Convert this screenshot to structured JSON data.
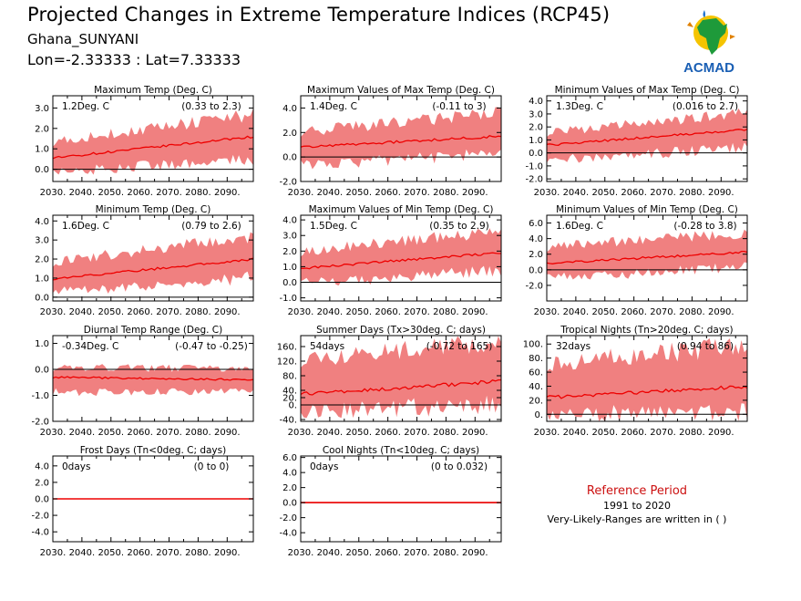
{
  "header": {
    "title": "Projected Changes in Extreme Temperature Indices (RCP45)",
    "site": "Ghana_SUNYANI",
    "location": "Lon=-2.33333 : Lat=7.33333"
  },
  "logo": {
    "text": "ACMAD",
    "icon": "africa-sun-logo-icon"
  },
  "reference": {
    "title": "Reference Period",
    "years": "1991 to 2020",
    "note": "Very-Likely-Ranges are written in ( )"
  },
  "colors": {
    "band": "#f08080",
    "line": "#ee0000",
    "zero": "#000000"
  },
  "chart_data": [
    {
      "type": "area",
      "title": "Maximum Temp (Deg. C)",
      "value_label": "1.2Deg. C",
      "range_label": "(0.33 to 2.3)",
      "xlim": [
        2030,
        2099
      ],
      "ylim": [
        -0.6,
        3.6
      ],
      "yticks": [
        0.0,
        1.0,
        2.0,
        3.0
      ],
      "ytick_labels": [
        "0.0",
        "1.0",
        "2.0",
        "3.0"
      ],
      "xticks": [
        "2030.",
        "2040.",
        "2050.",
        "2060.",
        "2070.",
        "2080.",
        "2090."
      ],
      "median": {
        "start": 0.55,
        "end": 1.6
      },
      "band": {
        "lower": [
          -0.1,
          0.6
        ],
        "upper": [
          1.3,
          2.6
        ]
      }
    },
    {
      "type": "area",
      "title": "Maximum Values of Max Temp (Deg. C)",
      "value_label": "1.4Deg. C",
      "range_label": "(-0.11 to 3)",
      "xlim": [
        2030,
        2099
      ],
      "ylim": [
        -2.0,
        5.0
      ],
      "yticks": [
        -2.0,
        0.0,
        2.0,
        4.0
      ],
      "ytick_labels": [
        "-2.0",
        "0.0",
        "2.0",
        "4.0"
      ],
      "xticks": [
        "2030.",
        "2040.",
        "2050.",
        "2060.",
        "2070.",
        "2080.",
        "2090."
      ],
      "median": {
        "start": 0.8,
        "end": 1.7
      },
      "band": {
        "lower": [
          -0.6,
          0.4
        ],
        "upper": [
          2.0,
          3.5
        ]
      }
    },
    {
      "type": "area",
      "title": "Minimum Values of Max Temp (Deg. C)",
      "value_label": "1.3Deg. C",
      "range_label": "(0.016 to 2.7)",
      "xlim": [
        2030,
        2099
      ],
      "ylim": [
        -2.2,
        4.4
      ],
      "yticks": [
        -2.0,
        -1.0,
        0.0,
        1.0,
        2.0,
        3.0,
        4.0
      ],
      "ytick_labels": [
        "-2.0",
        "-1.0",
        "0.0",
        "1.0",
        "2.0",
        "3.0",
        "4.0"
      ],
      "xticks": [
        "2030.",
        "2040.",
        "2050.",
        "2060.",
        "2070.",
        "2080.",
        "2090."
      ],
      "median": {
        "start": 0.6,
        "end": 1.8
      },
      "band": {
        "lower": [
          -0.5,
          0.5
        ],
        "upper": [
          1.5,
          3.0
        ]
      }
    },
    {
      "type": "area",
      "title": "Minimum Temp (Deg. C)",
      "value_label": "1.6Deg. C",
      "range_label": "(0.79 to 2.6)",
      "xlim": [
        2030,
        2099
      ],
      "ylim": [
        -0.2,
        4.3
      ],
      "yticks": [
        0.0,
        1.0,
        2.0,
        3.0,
        4.0
      ],
      "ytick_labels": [
        "0.0",
        "1.0",
        "2.0",
        "3.0",
        "4.0"
      ],
      "xticks": [
        "2030.",
        "2040.",
        "2050.",
        "2060.",
        "2070.",
        "2080.",
        "2090."
      ],
      "median": {
        "start": 0.95,
        "end": 2.0
      },
      "band": {
        "lower": [
          0.3,
          1.1
        ],
        "upper": [
          1.8,
          3.1
        ]
      }
    },
    {
      "type": "area",
      "title": "Maximum Values of Min Temp (Deg. C)",
      "value_label": "1.5Deg. C",
      "range_label": "(0.35 to 2.9)",
      "xlim": [
        2030,
        2099
      ],
      "ylim": [
        -1.2,
        4.3
      ],
      "yticks": [
        -1.0,
        0.0,
        1.0,
        2.0,
        3.0,
        4.0
      ],
      "ytick_labels": [
        "-1.0",
        "0.0",
        "1.0",
        "2.0",
        "3.0",
        "4.0"
      ],
      "xticks": [
        "2030.",
        "2040.",
        "2050.",
        "2060.",
        "2070.",
        "2080.",
        "2090."
      ],
      "median": {
        "start": 0.9,
        "end": 1.9
      },
      "band": {
        "lower": [
          0.0,
          0.8
        ],
        "upper": [
          1.9,
          3.2
        ]
      }
    },
    {
      "type": "area",
      "title": "Minimum Values of Min Temp (Deg. C)",
      "value_label": "1.6Deg. C",
      "range_label": "(-0.28 to 3.8)",
      "xlim": [
        2030,
        2099
      ],
      "ylim": [
        -4.0,
        7.0
      ],
      "yticks": [
        -2.0,
        0.0,
        2.0,
        4.0,
        6.0
      ],
      "ytick_labels": [
        "-2.0",
        "0.0",
        "2.0",
        "4.0",
        "6.0"
      ],
      "xticks": [
        "2030.",
        "2040.",
        "2050.",
        "2060.",
        "2070.",
        "2080.",
        "2090."
      ],
      "median": {
        "start": 0.8,
        "end": 2.3
      },
      "band": {
        "lower": [
          -1.0,
          0.5
        ],
        "upper": [
          2.8,
          4.6
        ]
      }
    },
    {
      "type": "area",
      "title": "Diurnal Temp Range (Deg. C)",
      "value_label": "-0.34Deg. C",
      "range_label": "(-0.47 to -0.25)",
      "xlim": [
        2030,
        2099
      ],
      "ylim": [
        -2.0,
        1.3
      ],
      "yticks": [
        -2.0,
        -1.0,
        0.0,
        1.0
      ],
      "ytick_labels": [
        "-2.0",
        "-1.0",
        "0.0",
        "1.0"
      ],
      "xticks": [
        "2030.",
        "2040.",
        "2050.",
        "2060.",
        "2070.",
        "2080.",
        "2090."
      ],
      "median": {
        "start": -0.3,
        "end": -0.4
      },
      "band": {
        "lower": [
          -0.85,
          -0.8
        ],
        "upper": [
          0.05,
          0.0
        ]
      }
    },
    {
      "type": "area",
      "title": "Summer Days (Tx>30deg. C; days)",
      "value_label": "54days",
      "range_label": "(-0.72 to 165)",
      "xlim": [
        2030,
        2099
      ],
      "ylim": [
        -45,
        190
      ],
      "yticks": [
        -40,
        0,
        20,
        40,
        80,
        120,
        160
      ],
      "ytick_labels": [
        "-40.",
        "0.",
        "20.",
        "40.",
        "80.",
        "120.",
        "160."
      ],
      "xticks": [
        "2030.",
        "2040.",
        "2050.",
        "2060.",
        "2070.",
        "2080.",
        "2090."
      ],
      "median": {
        "start": 30,
        "end": 65
      },
      "band": {
        "lower": [
          -10,
          5
        ],
        "upper": [
          120,
          170
        ]
      }
    },
    {
      "type": "area",
      "title": "Tropical Nights (Tn>20deg. C; days)",
      "value_label": "32days",
      "range_label": "(0.94 to 86)",
      "xlim": [
        2030,
        2099
      ],
      "ylim": [
        -10,
        112
      ],
      "yticks": [
        0,
        20,
        40,
        60,
        80,
        100
      ],
      "ytick_labels": [
        "0.",
        "20.",
        "40.",
        "60.",
        "80.",
        "100."
      ],
      "xticks": [
        "2030.",
        "2040.",
        "2050.",
        "2060.",
        "2070.",
        "2080.",
        "2090."
      ],
      "median": {
        "start": 24,
        "end": 40
      },
      "band": {
        "lower": [
          2,
          5
        ],
        "upper": [
          70,
          95
        ]
      }
    },
    {
      "type": "area",
      "title": "Frost Days (Tn<0deg. C; days)",
      "value_label": "0days",
      "range_label": "(0 to 0)",
      "xlim": [
        2030,
        2099
      ],
      "ylim": [
        -5.2,
        5.2
      ],
      "yticks": [
        -4.0,
        -2.0,
        0.0,
        2.0,
        4.0
      ],
      "ytick_labels": [
        "-4.0",
        "-2.0",
        "0.0",
        "2.0",
        "4.0"
      ],
      "xticks": [
        "2030.",
        "2040.",
        "2050.",
        "2060.",
        "2070.",
        "2080.",
        "2090."
      ],
      "median": {
        "start": 0,
        "end": 0
      },
      "band": {
        "lower": [
          0,
          0
        ],
        "upper": [
          0,
          0
        ]
      }
    },
    {
      "type": "area",
      "title": "Cool Nights (Tn<10deg. C; days)",
      "value_label": "0days",
      "range_label": "(0 to 0.032)",
      "xlim": [
        2030,
        2099
      ],
      "ylim": [
        -5.2,
        6.2
      ],
      "yticks": [
        -4.0,
        -2.0,
        0.0,
        2.0,
        4.0,
        6.0
      ],
      "ytick_labels": [
        "-4.0",
        "-2.0",
        "0.0",
        "2.0",
        "4.0",
        "6.0"
      ],
      "xticks": [
        "2030.",
        "2040.",
        "2050.",
        "2060.",
        "2070.",
        "2080.",
        "2090."
      ],
      "median": {
        "start": 0,
        "end": 0
      },
      "band": {
        "lower": [
          0,
          0
        ],
        "upper": [
          0,
          0
        ]
      }
    }
  ]
}
